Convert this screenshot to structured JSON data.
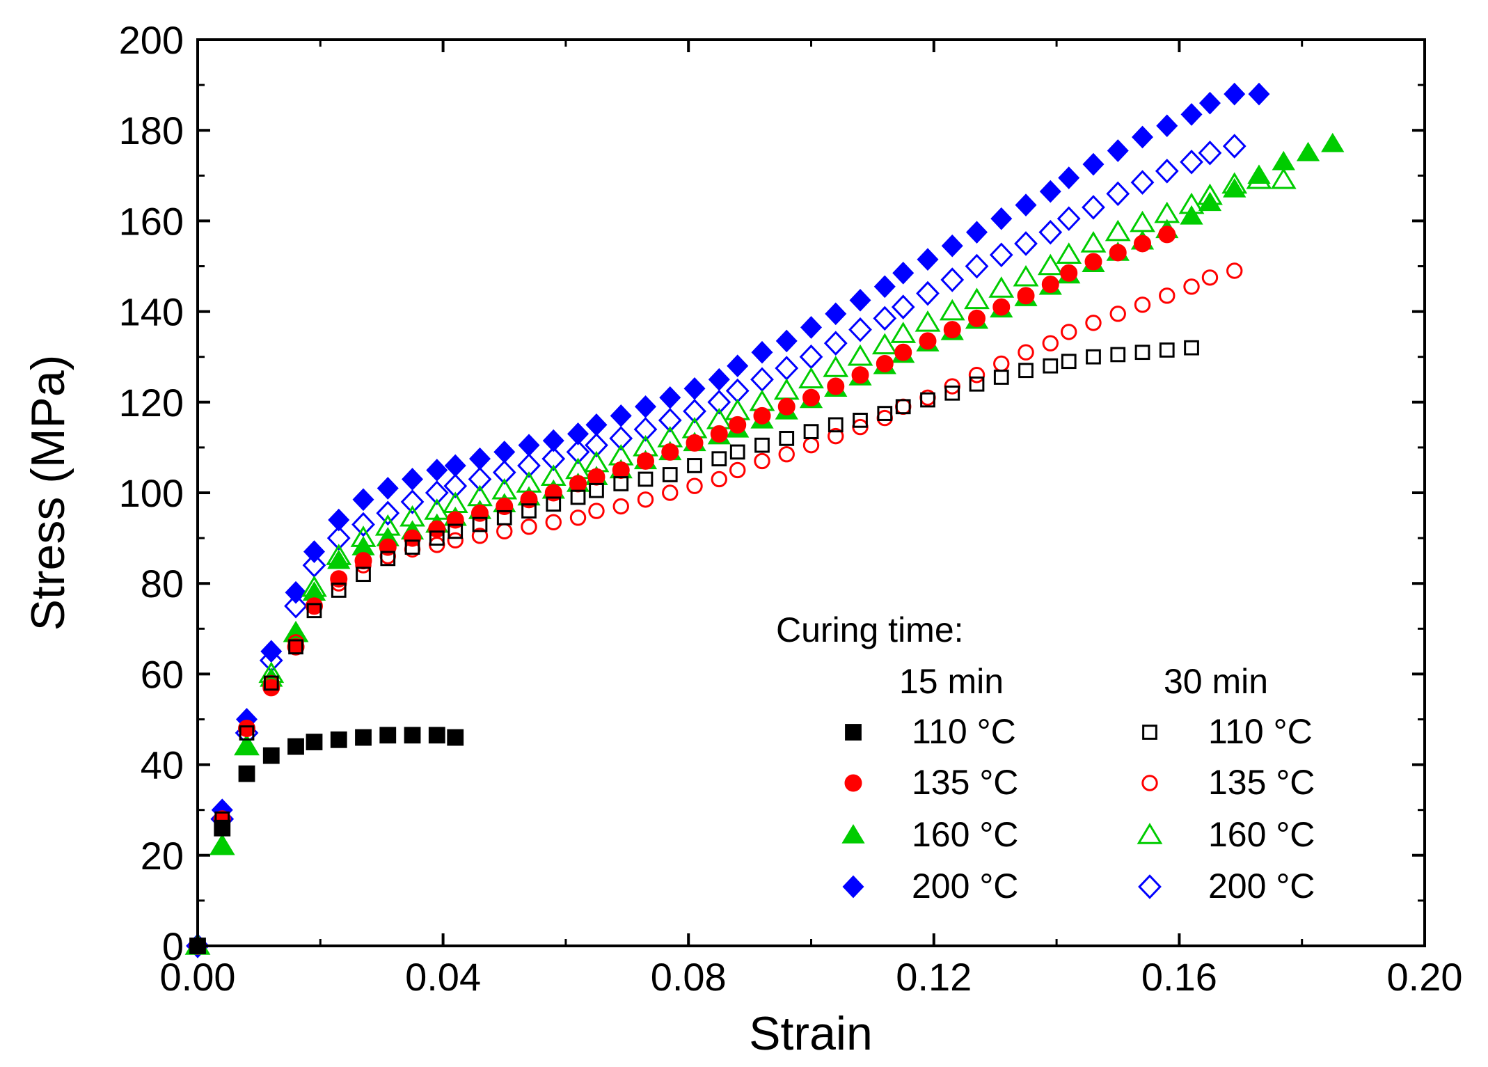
{
  "chart_data": {
    "type": "scatter",
    "title": "",
    "xlabel": "Strain",
    "ylabel": "Stress (MPa)",
    "xlim": [
      0,
      0.2
    ],
    "ylim": [
      0,
      200
    ],
    "xticks": [
      0,
      0.04,
      0.08,
      0.12,
      0.16,
      0.2
    ],
    "xtick_labels": [
      "0.00",
      "0.04",
      "0.08",
      "0.12",
      "0.16",
      "0.20"
    ],
    "yticks": [
      0,
      20,
      40,
      60,
      80,
      100,
      120,
      140,
      160,
      180,
      200
    ],
    "ytick_labels": [
      "0",
      "20",
      "40",
      "60",
      "80",
      "100",
      "120",
      "140",
      "160",
      "180",
      "200"
    ],
    "grid": false,
    "legend": {
      "position": "bottom-right",
      "title": "Curing time:",
      "group_labels": [
        "15 min",
        "30 min"
      ]
    },
    "series": [
      {
        "name": "110 °C",
        "group": "15 min",
        "marker": "square",
        "filled": true,
        "color": "#000000",
        "x": [
          0,
          0.004,
          0.008,
          0.012,
          0.016,
          0.019,
          0.023,
          0.027,
          0.031,
          0.035,
          0.039,
          0.042
        ],
        "y": [
          0,
          26,
          38,
          42,
          44,
          45,
          45.5,
          46,
          46.5,
          46.5,
          46.5,
          46
        ]
      },
      {
        "name": "135 °C",
        "group": "15 min",
        "marker": "circle",
        "filled": true,
        "color": "#ff0000",
        "x": [
          0,
          0.004,
          0.008,
          0.012,
          0.016,
          0.019,
          0.023,
          0.027,
          0.031,
          0.035,
          0.039,
          0.042,
          0.046,
          0.05,
          0.054,
          0.058,
          0.062,
          0.065,
          0.069,
          0.073,
          0.077,
          0.081,
          0.085,
          0.088,
          0.092,
          0.096,
          0.1,
          0.104,
          0.108,
          0.112,
          0.115,
          0.119,
          0.123,
          0.127,
          0.131,
          0.135,
          0.139,
          0.142,
          0.146,
          0.15,
          0.154,
          0.158
        ],
        "y": [
          0,
          28,
          48,
          57,
          66,
          75,
          81,
          85,
          88,
          90,
          92,
          94,
          95.5,
          97,
          98.5,
          100,
          102,
          103.5,
          105,
          107,
          109,
          111,
          113,
          115,
          117,
          119,
          121,
          123.5,
          126,
          128.5,
          131,
          133.5,
          136,
          138.5,
          141,
          143.5,
          146,
          148.5,
          151,
          153,
          155,
          157
        ]
      },
      {
        "name": "160 °C",
        "group": "15 min",
        "marker": "triangle",
        "filled": true,
        "color": "#00cc00",
        "x": [
          0,
          0.004,
          0.008,
          0.012,
          0.016,
          0.019,
          0.023,
          0.027,
          0.031,
          0.035,
          0.039,
          0.042,
          0.046,
          0.05,
          0.054,
          0.058,
          0.062,
          0.065,
          0.069,
          0.073,
          0.077,
          0.081,
          0.085,
          0.088,
          0.092,
          0.096,
          0.1,
          0.104,
          0.108,
          0.112,
          0.115,
          0.119,
          0.123,
          0.127,
          0.131,
          0.135,
          0.139,
          0.142,
          0.146,
          0.15,
          0.154,
          0.158,
          0.162,
          0.165,
          0.169,
          0.173,
          0.177,
          0.181,
          0.185
        ],
        "y": [
          0,
          22,
          44,
          59,
          69,
          78,
          85,
          88,
          90,
          91.5,
          93,
          94.5,
          96,
          97.5,
          99,
          100.5,
          102,
          103.5,
          105,
          107,
          109,
          111,
          112.5,
          114,
          116,
          118,
          120.5,
          123,
          125.5,
          128,
          130.5,
          133,
          135.5,
          138,
          140.5,
          143,
          145.5,
          148,
          150.5,
          153,
          155.5,
          158,
          161,
          164,
          167,
          170,
          173,
          175,
          177
        ]
      },
      {
        "name": "200 °C",
        "group": "15 min",
        "marker": "diamond",
        "filled": true,
        "color": "#0000ff",
        "x": [
          0,
          0.004,
          0.008,
          0.012,
          0.016,
          0.019,
          0.023,
          0.027,
          0.031,
          0.035,
          0.039,
          0.042,
          0.046,
          0.05,
          0.054,
          0.058,
          0.062,
          0.065,
          0.069,
          0.073,
          0.077,
          0.081,
          0.085,
          0.088,
          0.092,
          0.096,
          0.1,
          0.104,
          0.108,
          0.112,
          0.115,
          0.119,
          0.123,
          0.127,
          0.131,
          0.135,
          0.139,
          0.142,
          0.146,
          0.15,
          0.154,
          0.158,
          0.162,
          0.165,
          0.169,
          0.173
        ],
        "y": [
          0,
          30,
          50,
          65,
          78,
          87,
          94,
          98.5,
          101,
          103,
          105,
          106,
          107.5,
          109,
          110.5,
          111.5,
          113,
          115,
          117,
          119,
          121,
          123,
          125,
          128,
          131,
          133.5,
          136.5,
          139.5,
          142.5,
          145.5,
          148.5,
          151.5,
          154.5,
          157.5,
          160.5,
          163.5,
          166.5,
          169.5,
          172.5,
          175.5,
          178.5,
          181,
          183.5,
          186,
          188,
          188
        ]
      },
      {
        "name": "110 °C",
        "group": "30 min",
        "marker": "square",
        "filled": false,
        "color": "#000000",
        "x": [
          0,
          0.004,
          0.008,
          0.012,
          0.016,
          0.019,
          0.023,
          0.027,
          0.031,
          0.035,
          0.039,
          0.042,
          0.046,
          0.05,
          0.054,
          0.058,
          0.062,
          0.065,
          0.069,
          0.073,
          0.077,
          0.081,
          0.085,
          0.088,
          0.092,
          0.096,
          0.1,
          0.104,
          0.108,
          0.112,
          0.115,
          0.119,
          0.123,
          0.127,
          0.131,
          0.135,
          0.139,
          0.142,
          0.146,
          0.15,
          0.154,
          0.158,
          0.162
        ],
        "y": [
          0,
          28,
          47,
          58,
          66,
          74,
          78.5,
          82,
          85.5,
          88,
          90,
          91.5,
          93,
          94.5,
          96,
          97.5,
          99,
          100.5,
          102,
          103,
          104,
          106,
          107.5,
          109,
          110.5,
          112,
          113.5,
          115,
          116,
          117.5,
          119,
          120.5,
          122,
          124,
          125.5,
          127,
          128,
          129,
          130,
          130.5,
          131,
          131.5,
          132
        ]
      },
      {
        "name": "135 °C",
        "group": "30 min",
        "marker": "circle",
        "filled": false,
        "color": "#ff0000",
        "x": [
          0,
          0.004,
          0.008,
          0.012,
          0.016,
          0.019,
          0.023,
          0.027,
          0.031,
          0.035,
          0.039,
          0.042,
          0.046,
          0.05,
          0.054,
          0.058,
          0.062,
          0.065,
          0.069,
          0.073,
          0.077,
          0.081,
          0.085,
          0.088,
          0.092,
          0.096,
          0.1,
          0.104,
          0.108,
          0.112,
          0.115,
          0.119,
          0.123,
          0.127,
          0.131,
          0.135,
          0.139,
          0.142,
          0.146,
          0.15,
          0.154,
          0.158,
          0.162,
          0.165,
          0.169
        ],
        "y": [
          0,
          28,
          48,
          58,
          67,
          75,
          80,
          84,
          86,
          87.5,
          88.5,
          89.5,
          90.5,
          91.5,
          92.5,
          93.5,
          94.5,
          96,
          97,
          98.5,
          100,
          101.5,
          103,
          105,
          107,
          108.5,
          110.5,
          112.5,
          114.5,
          116.5,
          119,
          121,
          123.5,
          126,
          128.5,
          131,
          133,
          135.5,
          137.5,
          139.5,
          141.5,
          143.5,
          145.5,
          147.5,
          149
        ]
      },
      {
        "name": "160 °C",
        "group": "30 min",
        "marker": "triangle",
        "filled": false,
        "color": "#00cc00",
        "x": [
          0,
          0.004,
          0.008,
          0.012,
          0.016,
          0.019,
          0.023,
          0.027,
          0.031,
          0.035,
          0.039,
          0.042,
          0.046,
          0.05,
          0.054,
          0.058,
          0.062,
          0.065,
          0.069,
          0.073,
          0.077,
          0.081,
          0.085,
          0.088,
          0.092,
          0.096,
          0.1,
          0.104,
          0.108,
          0.112,
          0.115,
          0.119,
          0.123,
          0.127,
          0.131,
          0.135,
          0.139,
          0.142,
          0.146,
          0.15,
          0.154,
          0.158,
          0.162,
          0.165,
          0.169,
          0.173,
          0.177
        ],
        "y": [
          0,
          22,
          44,
          60,
          69,
          79,
          86,
          90,
          92.5,
          94.5,
          96,
          97.5,
          99,
          100.5,
          102,
          103.5,
          105,
          106.5,
          108,
          110,
          112,
          114,
          116,
          118,
          120,
          122.5,
          125,
          127.5,
          130,
          132.5,
          135,
          137.5,
          140,
          142.5,
          145,
          147.5,
          150,
          152.5,
          155,
          157.5,
          159.5,
          161.5,
          163.5,
          165.5,
          168,
          169,
          169
        ]
      },
      {
        "name": "200 °C",
        "group": "30 min",
        "marker": "diamond",
        "filled": false,
        "color": "#0000ff",
        "x": [
          0,
          0.004,
          0.008,
          0.012,
          0.016,
          0.019,
          0.023,
          0.027,
          0.031,
          0.035,
          0.039,
          0.042,
          0.046,
          0.05,
          0.054,
          0.058,
          0.062,
          0.065,
          0.069,
          0.073,
          0.077,
          0.081,
          0.085,
          0.088,
          0.092,
          0.096,
          0.1,
          0.104,
          0.108,
          0.112,
          0.115,
          0.119,
          0.123,
          0.127,
          0.131,
          0.135,
          0.139,
          0.142,
          0.146,
          0.15,
          0.154,
          0.158,
          0.162,
          0.165,
          0.169
        ],
        "y": [
          0,
          28,
          47,
          63,
          75,
          84,
          90,
          93,
          95.5,
          98,
          100,
          101.5,
          103,
          104.5,
          106,
          107.5,
          109,
          110.5,
          112,
          114,
          116,
          118,
          120,
          122.5,
          125,
          127.5,
          130,
          133,
          136,
          138.5,
          141,
          144,
          147,
          150,
          152.5,
          155,
          157.5,
          160.5,
          163,
          166,
          168.5,
          171,
          173,
          175,
          176.5
        ]
      }
    ]
  }
}
